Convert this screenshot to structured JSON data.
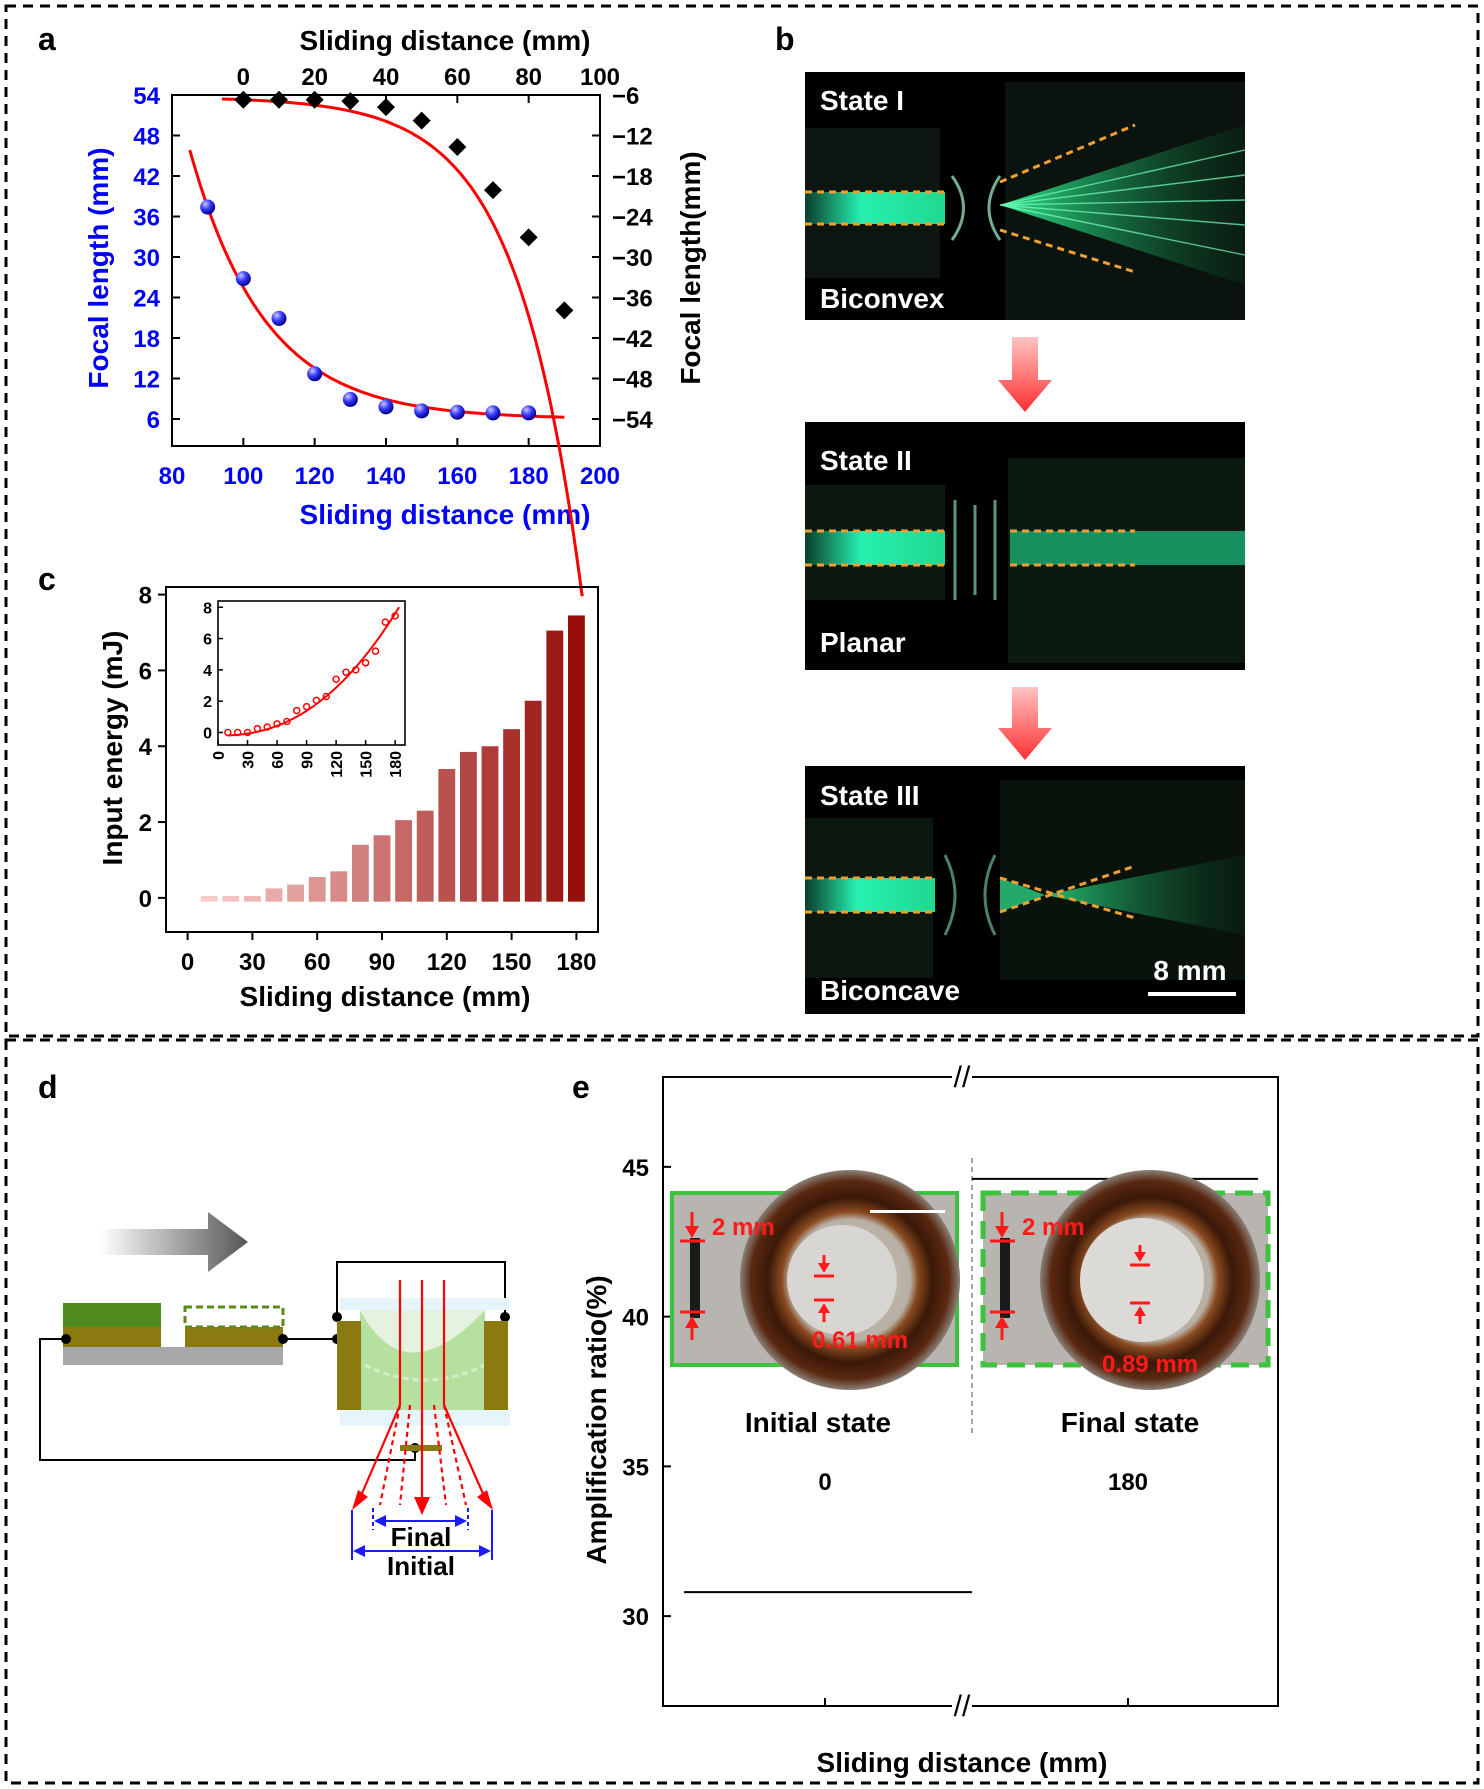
{
  "panels": {
    "a": {
      "letter": "a"
    },
    "b": {
      "letter": "b"
    },
    "c": {
      "letter": "c"
    },
    "d": {
      "letter": "d"
    },
    "e": {
      "letter": "e"
    }
  },
  "colors": {
    "blue": "#0000ff",
    "red": "#ff0000",
    "green_beam": "#19e39a",
    "orange_dash": "#f0a030"
  },
  "chart_data": [
    {
      "id": "a",
      "type": "scatter",
      "title": "",
      "xlabel_top": "Sliding distance (mm)",
      "xlabel_bottom": "Sliding distance (mm)",
      "ylabel_left": "Focal length (mm)",
      "ylabel_right": "Focal  length(mm)",
      "x_bottom_lim": [
        80,
        200
      ],
      "x_top_lim": [
        -20,
        100
      ],
      "y_left_lim": [
        2,
        54
      ],
      "y_right_lim": [
        -58,
        -6
      ],
      "x_bottom_ticks": [
        "80",
        "100",
        "120",
        "140",
        "160",
        "180",
        "200"
      ],
      "x_top_ticks": [
        "0",
        "20",
        "40",
        "60",
        "80",
        "100"
      ],
      "y_left_ticks": [
        "6",
        "12",
        "18",
        "24",
        "30",
        "36",
        "42",
        "48",
        "54"
      ],
      "y_right_ticks": [
        "−6",
        "−12",
        "−18",
        "−24",
        "−30",
        "−36",
        "−42",
        "−48",
        "−54"
      ],
      "series": [
        {
          "name": "convex (blue spheres)",
          "axis": "bottom-left",
          "x": [
            90,
            100,
            110,
            120,
            130,
            140,
            150,
            160,
            170,
            180
          ],
          "y": [
            37.4,
            26.8,
            20.9,
            12.7,
            8.9,
            7.8,
            7.2,
            7.0,
            6.9,
            6.9
          ]
        },
        {
          "name": "concave (black diamonds)",
          "axis": "top-right",
          "x": [
            0,
            10,
            20,
            30,
            40,
            50,
            60,
            70,
            80,
            90
          ],
          "y": [
            -6.7,
            -6.7,
            -6.7,
            -6.9,
            -7.8,
            -9.8,
            -13.7,
            -20.1,
            -27.1,
            -37.9
          ]
        }
      ]
    },
    {
      "id": "c",
      "type": "bar",
      "xlabel": "Sliding distance (mm)",
      "ylabel": "Input energy (mJ)",
      "xlim": [
        -10,
        190
      ],
      "ylim": [
        -0.9,
        8.2
      ],
      "x_ticks": [
        "0",
        "30",
        "60",
        "90",
        "120",
        "150",
        "180"
      ],
      "y_ticks": [
        "0",
        "2",
        "4",
        "6",
        "8"
      ],
      "x": [
        10,
        20,
        30,
        40,
        50,
        60,
        70,
        80,
        90,
        100,
        110,
        120,
        130,
        140,
        150,
        160,
        170,
        180
      ],
      "values": [
        0.0,
        0.0,
        0.0,
        0.25,
        0.35,
        0.55,
        0.7,
        1.4,
        1.65,
        2.05,
        2.3,
        3.4,
        3.85,
        4.0,
        4.45,
        5.2,
        7.05,
        7.45
      ],
      "inset": {
        "type": "scatter",
        "xlim": [
          0,
          190
        ],
        "ylim": [
          -0.8,
          8.4
        ],
        "x_ticks": [
          "0",
          "30",
          "60",
          "90",
          "120",
          "150",
          "180"
        ],
        "y_ticks": [
          "0",
          "2",
          "4",
          "6",
          "8"
        ]
      }
    },
    {
      "id": "e",
      "type": "bar",
      "xlabel": "Sliding distance (mm)",
      "ylabel": "Amplification ratio(%)",
      "ylim": [
        27,
        48
      ],
      "y_ticks": [
        "30",
        "35",
        "40",
        "45"
      ],
      "categories": [
        "0",
        "180"
      ],
      "values": [
        30.8,
        44.6
      ]
    }
  ],
  "panel_b": {
    "states": [
      {
        "state": "State I",
        "shape": "Biconvex"
      },
      {
        "state": "State II",
        "shape": "Planar"
      },
      {
        "state": "State III",
        "shape": "Biconcave"
      }
    ],
    "scale_bar": "8 mm"
  },
  "panel_d": {
    "final_label": "Final",
    "initial_label": "Initial"
  },
  "panel_e": {
    "photos": [
      {
        "state": "Initial state",
        "ref_size": "2 mm",
        "measured": "0.61 mm"
      },
      {
        "state": "Final state",
        "ref_size": "2 mm",
        "measured": "0.89 mm"
      }
    ],
    "break_mark": "//"
  }
}
